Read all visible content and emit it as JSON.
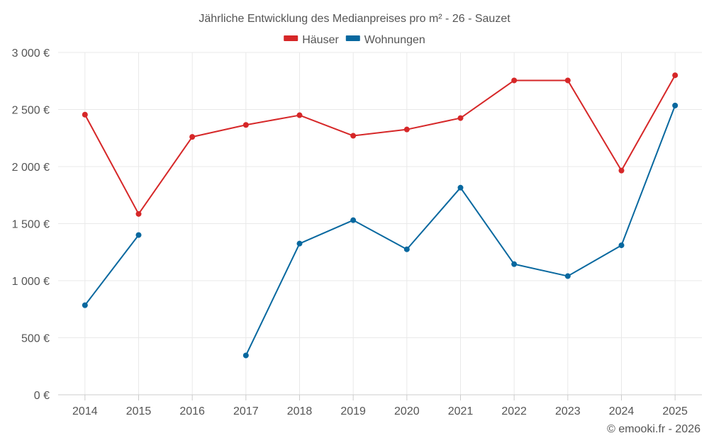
{
  "chart_data": {
    "type": "line",
    "title": "Jährliche Entwicklung des Medianpreises pro m² - 26 - Sauzet",
    "categories": [
      "2014",
      "2015",
      "2016",
      "2017",
      "2018",
      "2019",
      "2020",
      "2021",
      "2022",
      "2023",
      "2024",
      "2025"
    ],
    "series": [
      {
        "name": "Häuser",
        "color": "#d62728",
        "values": [
          2455,
          1585,
          2260,
          2365,
          2450,
          2270,
          2325,
          2425,
          2755,
          2755,
          1965,
          2800
        ]
      },
      {
        "name": "Wohnungen",
        "color": "#08689f",
        "values": [
          785,
          1400,
          null,
          345,
          1325,
          1530,
          1275,
          1815,
          1145,
          1040,
          1310,
          2535
        ]
      }
    ],
    "ylim": [
      0,
      3000
    ],
    "yticks": [
      0,
      500,
      1000,
      1500,
      2000,
      2500,
      3000
    ],
    "ytick_labels": [
      "0 €",
      "500 €",
      "1 000 €",
      "1 500 €",
      "2 000 €",
      "2 500 €",
      "3 000 €"
    ],
    "xlabel": "",
    "ylabel": "",
    "grid": true,
    "legend_position": "top-center"
  },
  "credit": "© emooki.fr - 2026"
}
